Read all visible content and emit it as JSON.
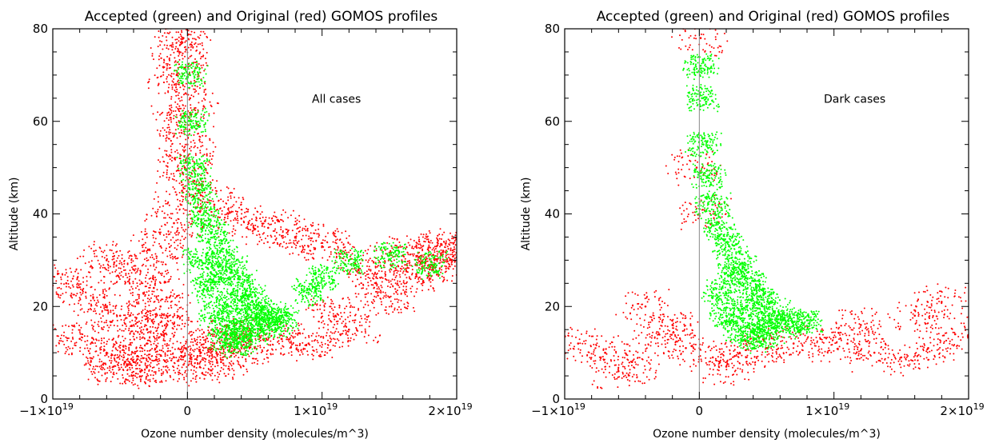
{
  "chart_data": [
    {
      "type": "scatter",
      "title": "Accepted (green) and Original (red) GOMOS profiles",
      "xlabel": "Ozone number density (molecules/m^3)",
      "ylabel": "Altitude (km)",
      "annotation": "All cases",
      "xlim": [
        -1e+19,
        2e+19
      ],
      "ylim": [
        0,
        80
      ],
      "x_ticks": [
        {
          "value": -1e+19,
          "label": "−1×10",
          "exp": "19"
        },
        {
          "value": 0,
          "label": "0",
          "exp": ""
        },
        {
          "value": 1e+19,
          "label": "1×10",
          "exp": "19"
        },
        {
          "value": 2e+19,
          "label": "2×10",
          "exp": "19"
        }
      ],
      "y_ticks": [
        0,
        20,
        40,
        60,
        80
      ],
      "grid": false,
      "series": [
        {
          "name": "Original",
          "color": "#ff0000",
          "points": [
            [
              -4e+18,
              8
            ],
            [
              -6e+18,
              10
            ],
            [
              -8e+18,
              13
            ],
            [
              -3e+18,
              15
            ],
            [
              -5e+18,
              18
            ],
            [
              -2e+18,
              20
            ],
            [
              -7e+18,
              22
            ],
            [
              -9e+18,
              25
            ],
            [
              -4e+18,
              28
            ],
            [
              -6e+18,
              30
            ],
            [
              -2e+18,
              33
            ],
            [
              -3e+18,
              12
            ],
            [
              -1e+18,
              9
            ],
            [
              -1.5e+18,
              16
            ],
            [
              -2.5e+18,
              24
            ],
            [
              1e+18,
              10
            ],
            [
              2e+18,
              12
            ],
            [
              3e+18,
              14
            ],
            [
              5e+18,
              11
            ],
            [
              7e+18,
              13
            ],
            [
              9e+18,
              12
            ],
            [
              1.2e+19,
              15
            ],
            [
              1.5e+19,
              22
            ],
            [
              1.8e+19,
              28
            ],
            [
              1.3e+19,
              30
            ],
            [
              1.6e+19,
              31
            ],
            [
              1.9e+19,
              32
            ],
            [
              1e+19,
              33
            ],
            [
              8e+18,
              35
            ],
            [
              6e+18,
              37
            ],
            [
              4e+18,
              39
            ],
            [
              2e+18,
              42
            ],
            [
              1.4e+19,
              25
            ],
            [
              1.7e+19,
              27
            ],
            [
              1.1e+19,
              18
            ],
            [
              -5e+17,
              60
            ],
            [
              -8e+17,
              70
            ],
            [
              -3e+17,
              78
            ],
            [
              -6e+17,
              75
            ],
            [
              2e+17,
              65
            ],
            [
              -2e+17,
              50
            ],
            [
              -4e+17,
              45
            ],
            [
              0.0,
              55
            ],
            [
              -1e+18,
              38
            ],
            [
              -3.5e+18,
              6
            ],
            [
              -5.5e+18,
              7
            ],
            [
              5e+17,
              7
            ],
            [
              2.5e+18,
              8
            ],
            [
              1.95e+19,
              30
            ],
            [
              1.85e+19,
              33
            ]
          ]
        },
        {
          "name": "Accepted",
          "color": "#00ff00",
          "points": [
            [
              5e+17,
              50
            ],
            [
              8e+17,
              45
            ],
            [
              1.2e+18,
              40
            ],
            [
              1.8e+18,
              36
            ],
            [
              2.5e+18,
              32
            ],
            [
              3.2e+18,
              28
            ],
            [
              4e+18,
              25
            ],
            [
              4.8e+18,
              22
            ],
            [
              5.5e+18,
              19
            ],
            [
              6e+18,
              17
            ],
            [
              5e+18,
              15
            ],
            [
              4e+18,
              14
            ],
            [
              3e+18,
              16
            ],
            [
              2e+18,
              19
            ],
            [
              1.5e+18,
              24
            ],
            [
              1e+18,
              30
            ],
            [
              2.2e+18,
              27
            ],
            [
              3.5e+18,
              21
            ],
            [
              4.5e+18,
              18
            ],
            [
              6.5e+18,
              16
            ],
            [
              7e+18,
              18
            ],
            [
              2.8e+18,
              13
            ],
            [
              3.8e+18,
              12
            ],
            [
              3e+17,
              60
            ],
            [
              2e+17,
              70
            ],
            [
              1.2e+19,
              30
            ],
            [
              1.5e+19,
              31
            ],
            [
              1.8e+19,
              29
            ],
            [
              1e+19,
              26
            ],
            [
              9e+18,
              23
            ]
          ]
        }
      ]
    },
    {
      "type": "scatter",
      "title": "Accepted (green) and Original (red) GOMOS profiles",
      "xlabel": "Ozone number density (molecules/m^3)",
      "ylabel": "Altitude (km)",
      "annotation": "Dark cases",
      "xlim": [
        -1e+19,
        2e+19
      ],
      "ylim": [
        0,
        80
      ],
      "x_ticks": [
        {
          "value": -1e+19,
          "label": "−1×10",
          "exp": "19"
        },
        {
          "value": 0,
          "label": "0",
          "exp": ""
        },
        {
          "value": 1e+19,
          "label": "1×10",
          "exp": "19"
        },
        {
          "value": 2e+19,
          "label": "2×10",
          "exp": "19"
        }
      ],
      "y_ticks": [
        0,
        20,
        40,
        60,
        80
      ],
      "grid": false,
      "series": [
        {
          "name": "Original",
          "color": "#ff0000",
          "points": [
            [
              -5e+18,
              8
            ],
            [
              -7e+18,
              10
            ],
            [
              -9e+18,
              12
            ],
            [
              -3e+18,
              14
            ],
            [
              -2e+18,
              16
            ],
            [
              -1e+18,
              11
            ],
            [
              1e+18,
              9
            ],
            [
              3e+18,
              10
            ],
            [
              5e+18,
              11
            ],
            [
              7e+18,
              12
            ],
            [
              9e+18,
              13
            ],
            [
              1.1e+19,
              12
            ],
            [
              1.3e+19,
              10
            ],
            [
              1.5e+19,
              9
            ],
            [
              1.7e+19,
              11
            ],
            [
              1.9e+19,
              14
            ],
            [
              1.2e+19,
              16
            ],
            [
              1.6e+19,
              18
            ],
            [
              -6e+18,
              6
            ],
            [
              2e+18,
              7
            ],
            [
              0.0,
              40
            ],
            [
              -2e+17,
              50
            ],
            [
              1e+17,
              78
            ],
            [
              -4e+18,
              20
            ],
            [
              1.8e+19,
              21
            ]
          ]
        },
        {
          "name": "Accepted",
          "color": "#00ff00",
          "points": [
            [
              3e+17,
              55
            ],
            [
              6e+17,
              48
            ],
            [
              1e+18,
              42
            ],
            [
              1.5e+18,
              37
            ],
            [
              2.2e+18,
              33
            ],
            [
              3e+18,
              29
            ],
            [
              3.8e+18,
              25
            ],
            [
              4.6e+18,
              22
            ],
            [
              5.5e+18,
              19
            ],
            [
              6.2e+18,
              17
            ],
            [
              5e+18,
              14
            ],
            [
              4e+18,
              13
            ],
            [
              3e+18,
              15
            ],
            [
              2e+18,
              18
            ],
            [
              1.5e+18,
              23
            ],
            [
              2.5e+18,
              27
            ],
            [
              3.5e+18,
              20
            ],
            [
              4.5e+18,
              16
            ],
            [
              7e+18,
              16
            ],
            [
              8e+18,
              17
            ],
            [
              2e+17,
              65
            ],
            [
              1e+17,
              72
            ]
          ]
        }
      ]
    }
  ]
}
